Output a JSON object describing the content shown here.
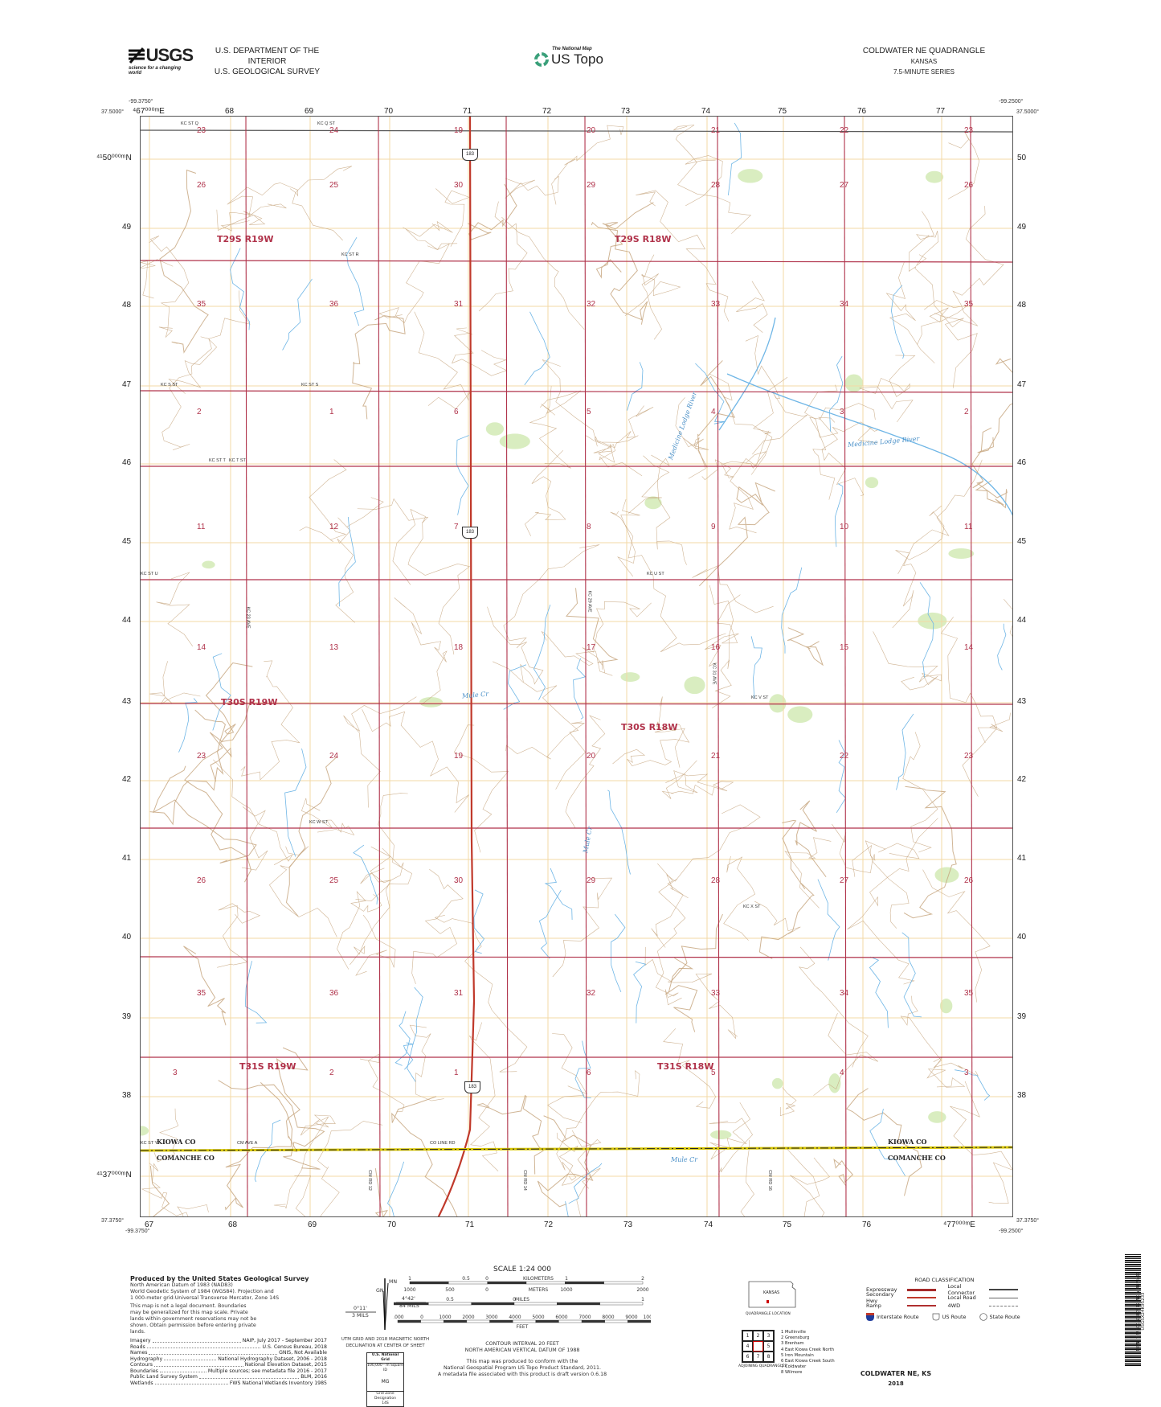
{
  "header": {
    "agency_logo": "USGS",
    "agency_tagline": "science for a changing world",
    "department": "U.S. DEPARTMENT OF THE INTERIOR",
    "survey": "U.S. GEOLOGICAL SURVEY",
    "national_map_small": "The National Map",
    "us_topo": "US Topo",
    "quad_title": "COLDWATER NE QUADRANGLE",
    "state": "KANSAS",
    "series": "7.5-MINUTE SERIES"
  },
  "corners": {
    "top_left_lon": "-99.3750°",
    "top_left_lat": "37.5000°",
    "top_right_lon": "-99.2500°",
    "top_right_lat": "37.5000°",
    "bottom_left_lon": "-99.3750°",
    "bottom_left_lat": "37.3750°",
    "bottom_right_lon": "-99.2500°",
    "bottom_right_lat": "37.3750°"
  },
  "grid": {
    "top_easting": [
      "⁴67⁰⁰⁰ᵐE",
      "68",
      "69",
      "70",
      "71",
      "72",
      "73",
      "74",
      "75",
      "76",
      "77"
    ],
    "bottom_easting": [
      "67",
      "68",
      "69",
      "70",
      "71",
      "72",
      "73",
      "74",
      "75",
      "76",
      "⁴77⁰⁰⁰ᵐE"
    ],
    "northing": [
      "⁴¹50⁰⁰⁰ᵐN",
      "49",
      "48",
      "47",
      "46",
      "45",
      "44",
      "43",
      "42",
      "41",
      "40",
      "39",
      "38",
      "⁴¹37⁰⁰⁰ᵐN"
    ],
    "northing_right": [
      "50",
      "49",
      "48",
      "47",
      "46",
      "45",
      "44",
      "43",
      "42",
      "41",
      "40",
      "39",
      "38"
    ]
  },
  "map": {
    "sections": [
      [
        "23",
        "24",
        "19",
        "20",
        "21",
        "22",
        "23"
      ],
      [
        "26",
        "25",
        "30",
        "29",
        "28",
        "27",
        "26"
      ],
      [
        "35",
        "36",
        "31",
        "32",
        "33",
        "34",
        "35"
      ],
      [
        "2",
        "1",
        "6",
        "5",
        "4",
        "3",
        "2"
      ],
      [
        "11",
        "12",
        "7",
        "8",
        "9",
        "10",
        "11"
      ],
      [
        "14",
        "13",
        "18",
        "17",
        "16",
        "15",
        "14"
      ],
      [
        "23",
        "24",
        "19",
        "20",
        "21",
        "22",
        "23"
      ],
      [
        "26",
        "25",
        "30",
        "29",
        "28",
        "27",
        "26"
      ],
      [
        "35",
        "36",
        "31",
        "32",
        "33",
        "34",
        "35"
      ],
      [
        "3",
        "2",
        "1",
        "6",
        "5",
        "4",
        "3"
      ]
    ],
    "townships": [
      "T29S R19W",
      "T29S R18W",
      "T30S R19W",
      "T30S R18W",
      "T31S R19W",
      "T31S R18W"
    ],
    "roads": [
      "KC ST Q",
      "KC Q ST",
      "KC ST R",
      "KC S ST",
      "KC ST S",
      "KC ST T",
      "KC T ST",
      "KC ST U",
      "KC U ST",
      "KC V ST",
      "KC W ST",
      "KC X ST",
      "KC ST Y",
      "CM AVE A",
      "CO LINE RD",
      "KC 29 AVE",
      "KC 23 AVE",
      "KC 31 AVE",
      "CM RD 12",
      "CM RD 14",
      "CM RD 16"
    ],
    "route_shield": "183",
    "water": [
      "Medicine Lodge River",
      "Medicine Lodge River",
      "Mule Cr",
      "Mule Cr",
      "Mule Cr"
    ],
    "counties": {
      "north": "KIOWA CO",
      "south": "COMANCHE CO"
    },
    "colors": {
      "section_line": "#b0324a",
      "contour": "#c4a27a",
      "water": "#6fb6e6",
      "utm_grid": "#f3d9a6",
      "woodland": "#cfe8b0",
      "county": "#d6c400"
    }
  },
  "footer": {
    "produced_by": "Produced by the United States Geological Survey",
    "datum_lines": [
      "North American Datum of 1983 (NAD83)",
      "World Geodetic System of 1984 (WGS84). Projection and",
      "1 000-meter grid:Universal Transverse Mercator, Zone 14S"
    ],
    "disclaimer": "This map is not a legal document. Boundaries may be generalized for this map scale. Private lands within government reservations may not be shown. Obtain permission before entering private lands.",
    "sources": [
      {
        "label": "Imagery",
        "value": "NAIP, July 2017 - September 2017"
      },
      {
        "label": "Roads",
        "value": "U.S. Census Bureau, 2018"
      },
      {
        "label": "Names",
        "value": "GNIS, Not Available"
      },
      {
        "label": "Hydrography",
        "value": "National Hydrography Dataset, 2006 - 2018"
      },
      {
        "label": "Contours",
        "value": "National Elevation Dataset, 2015"
      },
      {
        "label": "Boundaries",
        "value": "Multiple sources; see metadata file 2016 - 2017"
      },
      {
        "label": "Public Land Survey System",
        "value": "BLM, 2016"
      },
      {
        "label": "Wetlands",
        "value": "FWS National Wetlands Inventory 1985"
      }
    ],
    "declination": {
      "mn": "MN",
      "gn": "GN",
      "mn_angle": "4°42'",
      "mn_mils": "84 MILS",
      "gn_angle": "0°11'",
      "gn_mils": "3 MILS",
      "caption": "UTM GRID AND 2018 MAGNETIC NORTH DECLINATION AT CENTER OF SHEET"
    },
    "national_grid": {
      "title": "U.S. National Grid",
      "square_label": "100,000 - m Square ID",
      "square_id": "MG",
      "zone_label": "Grid Zone Designation",
      "zone": "14S"
    },
    "scale": {
      "title": "SCALE 1:24 000",
      "km_labels": [
        "1",
        "0.5",
        "0",
        "KILOMETERS",
        "1",
        "2"
      ],
      "m_labels": [
        "1000",
        "500",
        "0",
        "METERS",
        "1000",
        "2000"
      ],
      "mi_labels": [
        "1",
        "0.5",
        "0",
        "MILES",
        "1"
      ],
      "ft_labels": [
        "1000",
        "0",
        "1000",
        "2000",
        "3000",
        "4000",
        "5000",
        "6000",
        "7000",
        "8000",
        "9000",
        "10000"
      ],
      "ft_unit": "FEET"
    },
    "contour_interval": "CONTOUR INTERVAL 20 FEET",
    "vertical_datum": "NORTH AMERICAN VERTICAL DATUM OF 1988",
    "standard_lines": [
      "This map was produced to conform with the",
      "National Geospatial Program US Topo Product Standard, 2011.",
      "A metadata file associated with this product is draft version 0.6.18"
    ],
    "location": {
      "state": "KANSAS",
      "caption": "QUADRANGLE LOCATION"
    },
    "adjoining": {
      "cells": [
        "1",
        "2",
        "3",
        "4",
        "",
        "5",
        "6",
        "7",
        "8"
      ],
      "names": [
        "1 Mullinville",
        "2 Greensburg",
        "3 Brenham",
        "4 East Kiowa Creek North",
        "5 Iron Mountain",
        "6 East Kiowa Creek South",
        "7 Coldwater",
        "8 Wilmore"
      ],
      "caption": "ADJOINING QUADRANGLES"
    },
    "road_class": {
      "title": "ROAD CLASSIFICATION",
      "items": [
        "Expressway",
        "Secondary Hwy",
        "Ramp",
        "Local Connector",
        "Local Road",
        "4WD"
      ],
      "routes": [
        "Interstate Route",
        "US Route",
        "State Route"
      ]
    },
    "bottom_title": "COLDWATER NE,  KS",
    "year": "2018",
    "barcode_text": "NSN. 7643016380529 NGA REF NO. USGSX24K95233"
  }
}
